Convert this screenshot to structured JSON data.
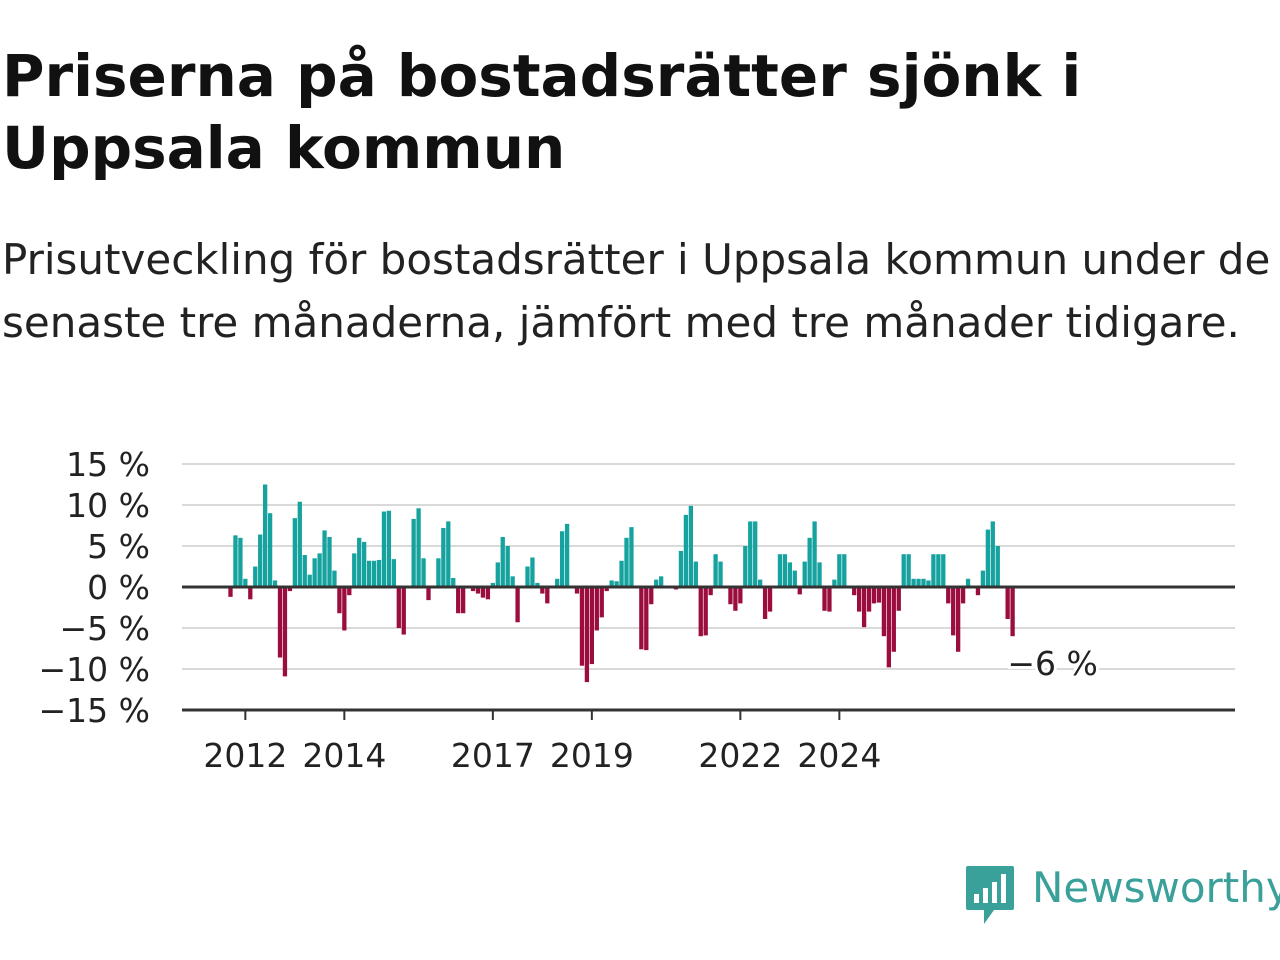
{
  "title": "Priserna på bostadsrätter sjönk i Uppsala kommun",
  "subtitle": "Prisutveckling för bostadsrätter i Uppsala kommun under de senaste tre månaderna, jämfört med tre månader tidigare.",
  "brand": {
    "name": "Newsworthy",
    "color": "#3aa09a",
    "icon": "newsworthy-bar-chart-icon"
  },
  "colors": {
    "positive": "#16a39f",
    "negative": "#9b0d3e",
    "grid": "#d9d9d9",
    "baseline": "#333333"
  },
  "chart_data": {
    "type": "bar",
    "title": "",
    "xlabel": "",
    "ylabel": "",
    "ylim": [
      -15,
      15
    ],
    "yticks": [
      15,
      10,
      5,
      0,
      -5,
      -10,
      -15
    ],
    "ytick_labels": [
      "15 %",
      "10 %",
      "5 %",
      "0 %",
      "−5 %",
      "−10 %",
      "−15 %"
    ],
    "xticks": [
      {
        "label": "2012",
        "index": 3
      },
      {
        "label": "2014",
        "index": 23
      },
      {
        "label": "2017",
        "index": 53
      },
      {
        "label": "2019",
        "index": 73
      },
      {
        "label": "2022",
        "index": 103
      },
      {
        "label": "2024",
        "index": 123
      }
    ],
    "last_value_label": "−6 %",
    "grid": true,
    "values": [
      -1.2,
      6.3,
      6.0,
      1.0,
      -1.5,
      2.5,
      6.4,
      12.5,
      9.0,
      0.8,
      -8.6,
      -10.9,
      -0.5,
      8.4,
      10.4,
      3.9,
      1.5,
      3.5,
      4.1,
      6.9,
      6.1,
      2.0,
      -3.2,
      -5.3,
      -1.0,
      4.1,
      6.0,
      5.5,
      3.2,
      3.2,
      3.3,
      9.2,
      9.3,
      3.4,
      -5.0,
      -5.8,
      0.0,
      8.3,
      9.6,
      3.5,
      -1.6,
      0.0,
      3.5,
      7.2,
      8.0,
      1.1,
      -3.2,
      -3.2,
      0.0,
      -0.5,
      -0.8,
      -1.3,
      -1.5,
      0.5,
      3.0,
      6.1,
      5.0,
      1.3,
      -4.3,
      0.0,
      2.5,
      3.6,
      0.5,
      -0.8,
      -2.0,
      0.0,
      1.0,
      6.8,
      7.7,
      0.0,
      -0.8,
      -9.6,
      -11.6,
      -9.4,
      -5.3,
      -3.7,
      -0.5,
      0.8,
      0.7,
      3.2,
      6.0,
      7.3,
      0.0,
      -7.6,
      -7.7,
      -2.1,
      0.9,
      1.3,
      0.0,
      0.0,
      -0.3,
      4.4,
      8.8,
      9.9,
      3.1,
      -6.0,
      -5.9,
      -1.0,
      4.0,
      3.1,
      0.0,
      -2.1,
      -2.9,
      -2.0,
      5.0,
      8.0,
      8.0,
      0.9,
      -3.9,
      -3.0,
      0.0,
      4.0,
      4.0,
      3.0,
      2.0,
      -0.9,
      3.1,
      6.0,
      8.0,
      3.0,
      -2.9,
      -3.0,
      0.9,
      4.0,
      4.0,
      0.0,
      -1.0,
      -3.0,
      -4.9,
      -3.0,
      -2.0,
      -1.9,
      -6.0,
      -9.8,
      -7.9,
      -2.9,
      4.0,
      4.0,
      1.0,
      1.0,
      1.0,
      0.8,
      4.0,
      4.0,
      4.0,
      -2.0,
      -5.9,
      -7.9,
      -2.0,
      1.0,
      0.0,
      -1.0,
      2.0,
      7.0,
      8.0,
      5.0,
      0.0,
      -3.9,
      -6.0
    ]
  }
}
